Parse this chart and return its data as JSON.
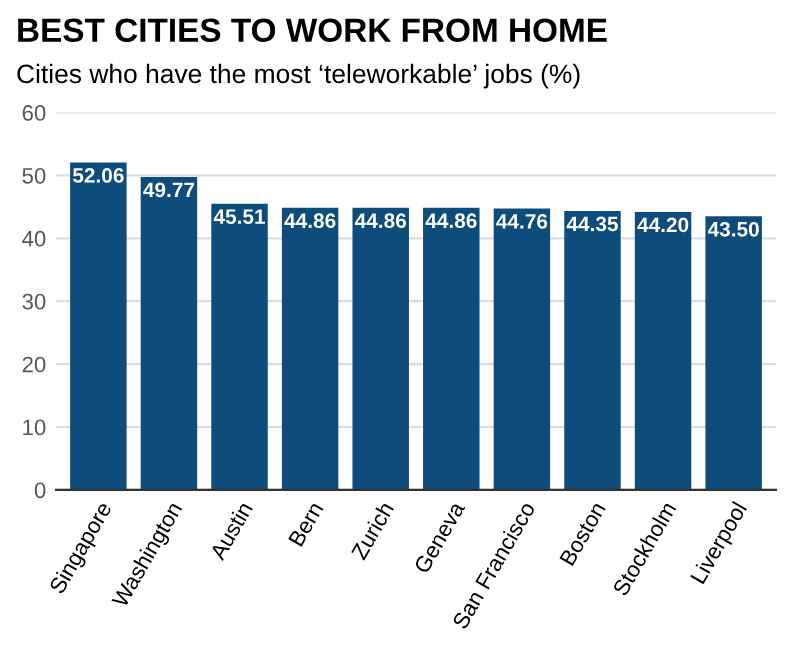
{
  "chart_data": {
    "type": "bar",
    "title": "BEST CITIES TO WORK FROM HOME",
    "subtitle": "Cities who have the most ‘teleworkable’ jobs (%)",
    "categories": [
      "Singapore",
      "Washington",
      "Austin",
      "Bern",
      "Zurich",
      "Geneva",
      "San Francisco",
      "Boston",
      "Stockholm",
      "Liverpool"
    ],
    "values": [
      52.06,
      49.77,
      45.51,
      44.86,
      44.86,
      44.86,
      44.76,
      44.35,
      44.2,
      43.5
    ],
    "value_labels": [
      "52.06",
      "49.77",
      "45.51",
      "44.86",
      "44.86",
      "44.86",
      "44.76",
      "44.35",
      "44.20",
      "43.50"
    ],
    "color": "#0e4c7c",
    "ylim": [
      0,
      60
    ],
    "yticks": [
      0,
      10,
      20,
      30,
      40,
      50,
      60
    ],
    "grid": "y"
  }
}
